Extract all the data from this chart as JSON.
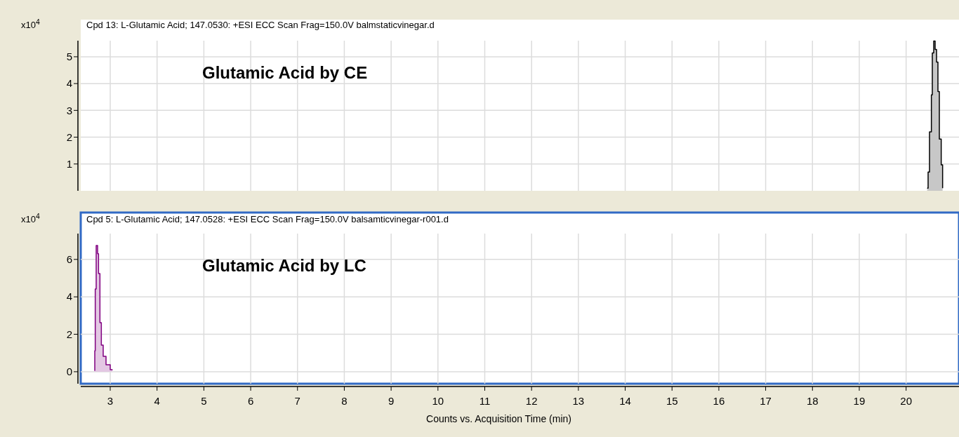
{
  "chart_data": [
    {
      "type": "area",
      "title": "Cpd 13: L-Glutamic Acid; 147.0530: +ESI ECC Scan Frag=150.0V balmstaticvinegar.d",
      "ylabel": "x10$^{4}$",
      "annotations": [
        "Glutamic Acid by CE"
      ],
      "xlim": [
        2.37,
        21.13
      ],
      "xticks": [
        3,
        4,
        5,
        6,
        7,
        8,
        9,
        10,
        11,
        12,
        13,
        14,
        15,
        16,
        17,
        18,
        19,
        20
      ],
      "ylim": [
        0,
        5.6
      ],
      "yticks": [
        1,
        2,
        3,
        4,
        5
      ],
      "grid": true,
      "tick_labels": "y",
      "series": [
        {
          "color": "#000000",
          "x": [
            20.45,
            20.47,
            20.5,
            20.54,
            20.56,
            20.59,
            20.62,
            20.65,
            20.68,
            20.71,
            20.75,
            20.78
          ],
          "values": [
            0.1,
            0.7,
            2.2,
            3.58,
            5.14,
            5.59,
            5.27,
            4.8,
            3.7,
            1.93,
            0.97,
            0.1
          ]
        }
      ]
    },
    {
      "type": "area",
      "title": "Cpd 5: L-Glutamic Acid; 147.0528: +ESI ECC Scan Frag=150.0V balsamticvinegar-r001.d",
      "ylabel": "x10$^{4}$",
      "xlabel": "Counts vs. Acquisition Time (min)",
      "annotations": [
        "Glutamic Acid by LC"
      ],
      "xlim": [
        2.37,
        21.13
      ],
      "xticks": [
        3,
        4,
        5,
        6,
        7,
        8,
        9,
        10,
        11,
        12,
        13,
        14,
        15,
        16,
        17,
        18,
        19,
        20
      ],
      "ylim": [
        -0.64,
        7.38
      ],
      "yticks": [
        0,
        2,
        4,
        6
      ],
      "grid": true,
      "series": [
        {
          "color": "#800080",
          "x": [
            2.66,
            2.67,
            2.68,
            2.7,
            2.73,
            2.75,
            2.78,
            2.81,
            2.85,
            2.91,
            3.0,
            3.04
          ],
          "values": [
            0.07,
            1.12,
            4.42,
            6.74,
            6.3,
            5.24,
            2.62,
            1.42,
            0.82,
            0.37,
            0.11,
            0.07
          ]
        }
      ]
    }
  ]
}
